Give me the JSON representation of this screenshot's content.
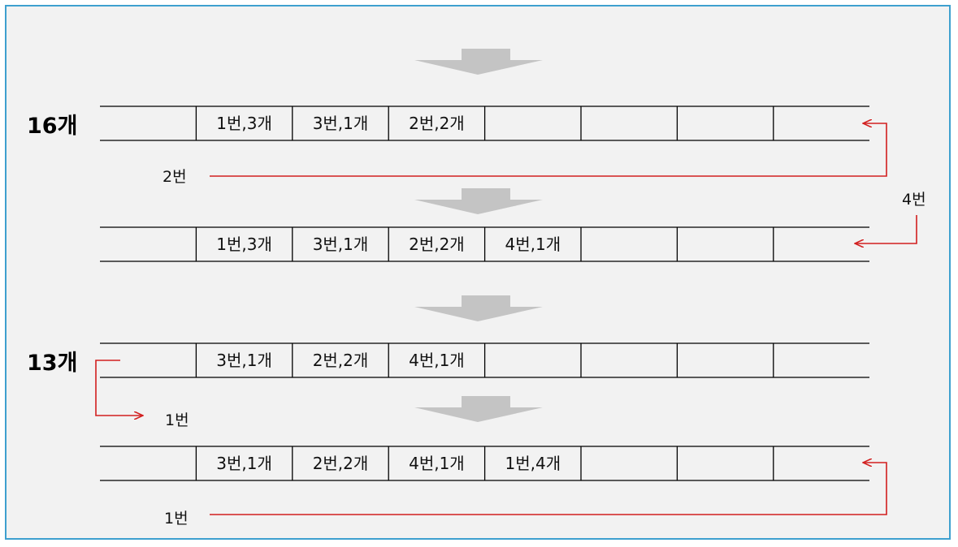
{
  "rows": [
    {
      "count_label": "16개",
      "cells": [
        "",
        "1번,3개",
        "3번,1개",
        "2번,2개",
        "",
        "",
        "",
        ""
      ]
    },
    {
      "count_label": "",
      "cells": [
        "",
        "1번,3개",
        "3번,1개",
        "2번,2개",
        "4번,1개",
        "",
        "",
        ""
      ]
    },
    {
      "count_label": "13개",
      "cells": [
        "",
        "3번,1개",
        "2번,2개",
        "4번,1개",
        "",
        "",
        "",
        ""
      ]
    },
    {
      "count_label": "",
      "cells": [
        "",
        "3번,1개",
        "2번,2개",
        "4번,1개",
        "1번,4개",
        "",
        "",
        ""
      ]
    }
  ],
  "annotations": {
    "return_2": "2번",
    "arrive_4": "4번",
    "remove_1": "1번",
    "return_1": "1번"
  },
  "colors": {
    "frame_border": "#3ea0cf",
    "background": "#f2f2f2",
    "arrow_red": "#d21f1f",
    "flow_arrow_gray": "#c4c4c4",
    "line": "#000000"
  }
}
